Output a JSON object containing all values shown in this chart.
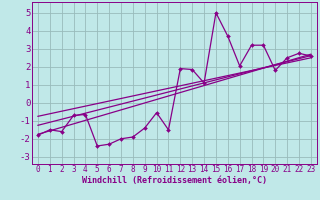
{
  "xlabel": "Windchill (Refroidissement éolien,°C)",
  "background_color": "#c0e8e8",
  "line_color": "#880088",
  "grid_color": "#99bbbb",
  "xlim": [
    -0.5,
    23.5
  ],
  "ylim": [
    -3.4,
    5.6
  ],
  "yticks": [
    -3,
    -2,
    -1,
    0,
    1,
    2,
    3,
    4,
    5
  ],
  "xticks": [
    0,
    1,
    2,
    3,
    4,
    5,
    6,
    7,
    8,
    9,
    10,
    11,
    12,
    13,
    14,
    15,
    16,
    17,
    18,
    19,
    20,
    21,
    22,
    23
  ],
  "series1": {
    "x": [
      0,
      1,
      2,
      3,
      4,
      5,
      6,
      7,
      8,
      9,
      10,
      11,
      12,
      13,
      14,
      15,
      16,
      17,
      18,
      19,
      20,
      21,
      22,
      23
    ],
    "y": [
      -1.8,
      -1.5,
      -1.6,
      -0.7,
      -0.65,
      -2.4,
      -2.3,
      -2.0,
      -1.9,
      -1.4,
      -0.55,
      -1.5,
      1.9,
      1.85,
      1.1,
      5.0,
      3.7,
      2.05,
      3.2,
      3.2,
      1.8,
      2.5,
      2.75,
      2.6
    ]
  },
  "line1": {
    "x": [
      0,
      23
    ],
    "y": [
      -1.75,
      2.7
    ]
  },
  "line2": {
    "x": [
      0,
      23
    ],
    "y": [
      -0.75,
      2.5
    ]
  },
  "line3": {
    "x": [
      0,
      23
    ],
    "y": [
      -1.25,
      2.62
    ]
  }
}
